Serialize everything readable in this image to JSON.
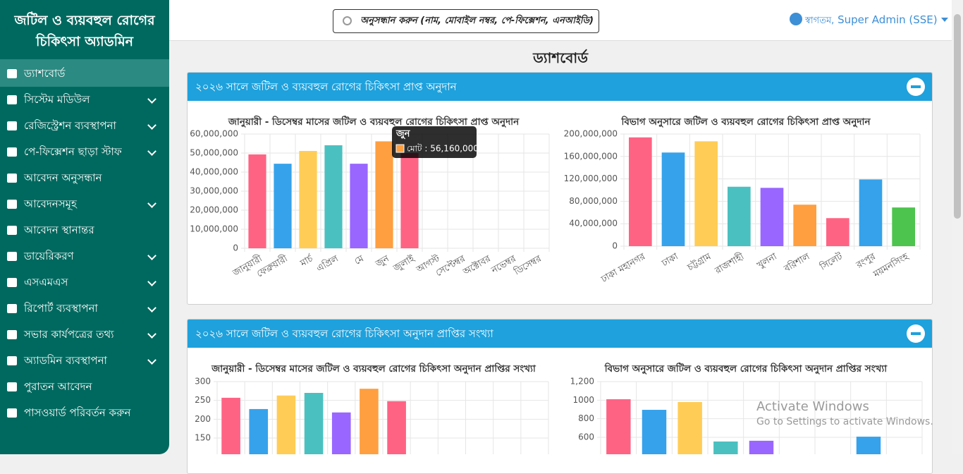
{
  "sidebar": {
    "title_lines": [
      "জটিল ও ব্যয়বহুল রোগের",
      "চিকিৎসা অ্যাডমিন"
    ],
    "menu": [
      {
        "label": "ড্যাশবোর্ড",
        "submenu": false,
        "active": true
      },
      {
        "label": "সিস্টেম মডিউল",
        "submenu": true,
        "active": false
      },
      {
        "label": "রেজিস্ট্রেশন ব্যবস্থাপনা",
        "submenu": true,
        "active": false
      },
      {
        "label": "পে-ফিক্সেশন ছাড়া স্টাফ",
        "submenu": true,
        "active": false
      },
      {
        "label": "আবেদন অনুসন্ধান",
        "submenu": false,
        "active": false
      },
      {
        "label": "আবেদনসমূহ",
        "submenu": true,
        "active": false
      },
      {
        "label": "আবেদন স্থানান্তর",
        "submenu": false,
        "active": false
      },
      {
        "label": "ডায়েরিকরণ",
        "submenu": true,
        "active": false
      },
      {
        "label": "এসএমএস",
        "submenu": true,
        "active": false
      },
      {
        "label": "রিপোর্ট ব্যবস্থাপনা",
        "submenu": true,
        "active": false
      },
      {
        "label": "সভার কার্যপত্রের তথ্য",
        "submenu": true,
        "active": false
      },
      {
        "label": "অ্যাডমিন ব্যবস্থাপনা",
        "submenu": true,
        "active": false
      },
      {
        "label": "পুরাতন আবেদন",
        "submenu": false,
        "active": false
      },
      {
        "label": "পাসওয়ার্ড পরিবর্তন করুন",
        "submenu": false,
        "active": false
      }
    ]
  },
  "header": {
    "search_placeholder": "অনুসন্ধান করুন (নাম, মোবাইল নম্বর, পে-ফিক্সেশন, এনআইডি)",
    "greeting": "স্বাগতম,",
    "user": "Super Admin (SSE)"
  },
  "page_title": "ড্যাশবোর্ড",
  "panels": [
    {
      "title": "২০২৬ সালে জটিল ও ব্যয়বহুল রোগের চিকিৎসা প্রাপ্ত অনুদান"
    },
    {
      "title": "২০২৬ সালে জটিল ও ব্যয়বহুল রোগের চিকিৎসা অনুদান প্রাপ্তির সংখ্যা"
    }
  ],
  "chart_data": [
    {
      "type": "bar",
      "title": "জানুয়ারী - ডিসেম্বর মাসের জটিল ও ব্যয়বহুল রোগের চিকিৎসা প্রাপ্ত অনুদান",
      "categories": [
        "জানুয়ারী",
        "ফেব্রুয়ারী",
        "মার্চ",
        "এপ্রিল",
        "মে",
        "জুন",
        "জুলাই",
        "আগস্ট",
        "সেপ্টেম্বর",
        "অক্টোবর",
        "নভেম্বর",
        "ডিসেম্বর"
      ],
      "values": [
        49300000,
        44400000,
        51100000,
        54100000,
        44400000,
        56160000,
        50000000,
        null,
        null,
        null,
        null,
        null
      ],
      "colors": [
        "#ff6384",
        "#36a2eb",
        "#ffcd56",
        "#4bc0c0",
        "#9966ff",
        "#ff9f40",
        "#ff6384",
        "#36a2eb",
        "#ffcd56",
        "#4bc0c0",
        "#9966ff",
        "#ff9f40"
      ],
      "ylim": [
        0,
        60000000
      ],
      "yticks": [
        0,
        {
          "value": 10000000,
          "label": "10,000,000"
        },
        {
          "value": 20000000,
          "label": "20,000,000"
        },
        {
          "value": 30000000,
          "label": "30,000,000"
        },
        {
          "value": 40000000,
          "label": "40,000,000"
        },
        {
          "value": 50000000,
          "label": "50,000,000"
        },
        {
          "value": 60000000,
          "label": "60,000,000"
        }
      ],
      "grid": true
    },
    {
      "type": "bar",
      "title": "বিভাগ অনুসারে জটিল ও ব্যয়বহুল রোগের চিকিৎসা প্রাপ্ত অনুদান",
      "categories": [
        "ঢাকা মহানগর",
        "ঢাকা",
        "চট্টগ্রাম",
        "রাজশাহী",
        "খুলনা",
        "বরিশাল",
        "সিলেট",
        "রংপুর",
        "ময়মনসিংহ"
      ],
      "values": [
        194000000,
        167000000,
        187000000,
        106000000,
        104000000,
        74000000,
        50000000,
        119000000,
        69000000
      ],
      "colors": [
        "#ff6384",
        "#36a2eb",
        "#ffcd56",
        "#4bc0c0",
        "#9966ff",
        "#ff9f40",
        "#ff6384",
        "#36a2eb",
        "#4dc44d"
      ],
      "ylim": [
        0,
        200000000
      ],
      "yticks": [
        0,
        {
          "value": 40000000,
          "label": "40,000,000"
        },
        {
          "value": 80000000,
          "label": "80,000,000"
        },
        {
          "value": 120000000,
          "label": "120,000,000"
        },
        {
          "value": 160000000,
          "label": "160,000,000"
        },
        {
          "value": 200000000,
          "label": "200,000,000"
        }
      ],
      "grid": true
    },
    {
      "type": "bar",
      "title": "জানুয়ারী - ডিসেম্বর মাসের জটিল ও ব্যয়বহুল রোগের চিকিৎসা অনুদান প্রাপ্তির সংখ্যা",
      "values": [
        257,
        227,
        263,
        270,
        218,
        281,
        248,
        null,
        null,
        null,
        null,
        null
      ],
      "colors": [
        "#ff6384",
        "#36a2eb",
        "#ffcd56",
        "#4bc0c0",
        "#9966ff",
        "#ff9f40",
        "#ff6384",
        "#36a2eb",
        "#ffcd56",
        "#4bc0c0",
        "#9966ff",
        "#ff9f40"
      ],
      "ylim": [
        0,
        300
      ],
      "yticks": [
        150,
        200,
        250,
        300
      ],
      "grid": true
    },
    {
      "type": "bar",
      "title": "বিভাগ অনুসারে জটিল ও ব্যয়বহুল রোগের চিকিৎসা অনুদান প্রাপ্তির সংখ্যা",
      "values": [
        1010,
        896,
        980,
        555,
        563,
        null,
        null,
        607,
        null
      ],
      "colors": [
        "#ff6384",
        "#36a2eb",
        "#ffcd56",
        "#4bc0c0",
        "#9966ff",
        "#ff9f40",
        "#ff6384",
        "#36a2eb",
        "#4dc44d"
      ],
      "ylim": [
        0,
        1200
      ],
      "yticks": [
        600,
        800,
        1000,
        {
          "value": 1200,
          "label": "1,200"
        }
      ],
      "grid": true
    }
  ],
  "tooltip": {
    "title": "জুন",
    "label": "মোট : 56,160,000",
    "color": "#ff9f40"
  },
  "watermark": {
    "line1": "Activate Windows",
    "line2": "Go to Settings to activate Windows."
  }
}
